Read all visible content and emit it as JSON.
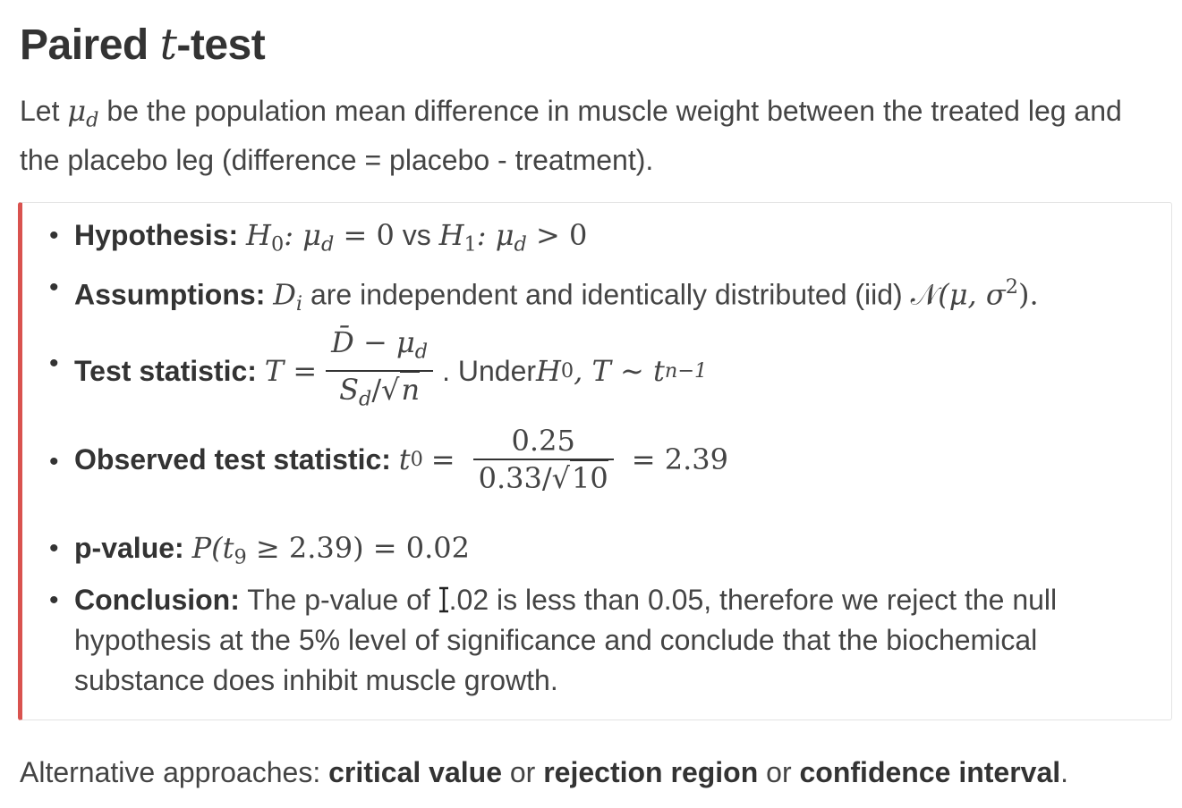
{
  "title": {
    "prefix": "Paired ",
    "italic": "t",
    "suffix": "-test"
  },
  "intro": {
    "text_before": "Let ",
    "symbol": "μ",
    "symbol_sub": "d",
    "text_after": " be the population mean difference in muscle weight between the treated leg and the placebo leg (difference = placebo - treatment)."
  },
  "callout": {
    "accent_color": "#d9534f",
    "items": [
      {
        "label": "Hypothesis:",
        "h0": "H",
        "h0_sub": "0",
        "h0_rest": ": μ",
        "h0_rest_sub": "d",
        "h0_eq": " = 0",
        "vs": " vs ",
        "h1": "H",
        "h1_sub": "1",
        "h1_rest": ": μ",
        "h1_rest_sub": "d",
        "h1_eq": " > 0"
      },
      {
        "label": "Assumptions:",
        "var": "D",
        "var_sub": "i",
        "text": " are independent and identically distributed (iid) ",
        "dist": "𝒩",
        "dist_args": "(μ, σ",
        "dist_sup": "2",
        "dist_close": ")."
      },
      {
        "label": "Test statistic:",
        "lhs": "T =",
        "num_main": "D̄ − μ",
        "num_sub": "d",
        "den_main": "S",
        "den_sub": "d",
        "den_slash": "/",
        "den_root": "n",
        "under_text": ". Under ",
        "under_h": "H",
        "under_h_sub": "0",
        "under_rest": ", T ∼ t",
        "under_rest_sub": "n−1"
      },
      {
        "label": "Observed test statistic:",
        "lhs": "t",
        "lhs_sub": "0",
        "eq": "=",
        "num": "0.25",
        "den_main": "0.33/",
        "den_root": "10",
        "result": "= 2.39"
      },
      {
        "label": "p-value:",
        "expr_p": "P(t",
        "expr_sub": "9",
        "expr_rest": " ≥ 2.39) = 0.02"
      },
      {
        "label": "Conclusion:",
        "text_a": " The p-value of ",
        "text_b": ".02 is less than 0.05, therefore we reject the null hypothesis at the 5% level of significance and conclude that the biochemical substance does inhibit muscle growth."
      }
    ]
  },
  "footer": {
    "prefix": "Alternative approaches: ",
    "a": "critical value",
    "or1": " or ",
    "b": "rejection region",
    "or2": " or ",
    "c": "confidence interval",
    "suffix": "."
  }
}
